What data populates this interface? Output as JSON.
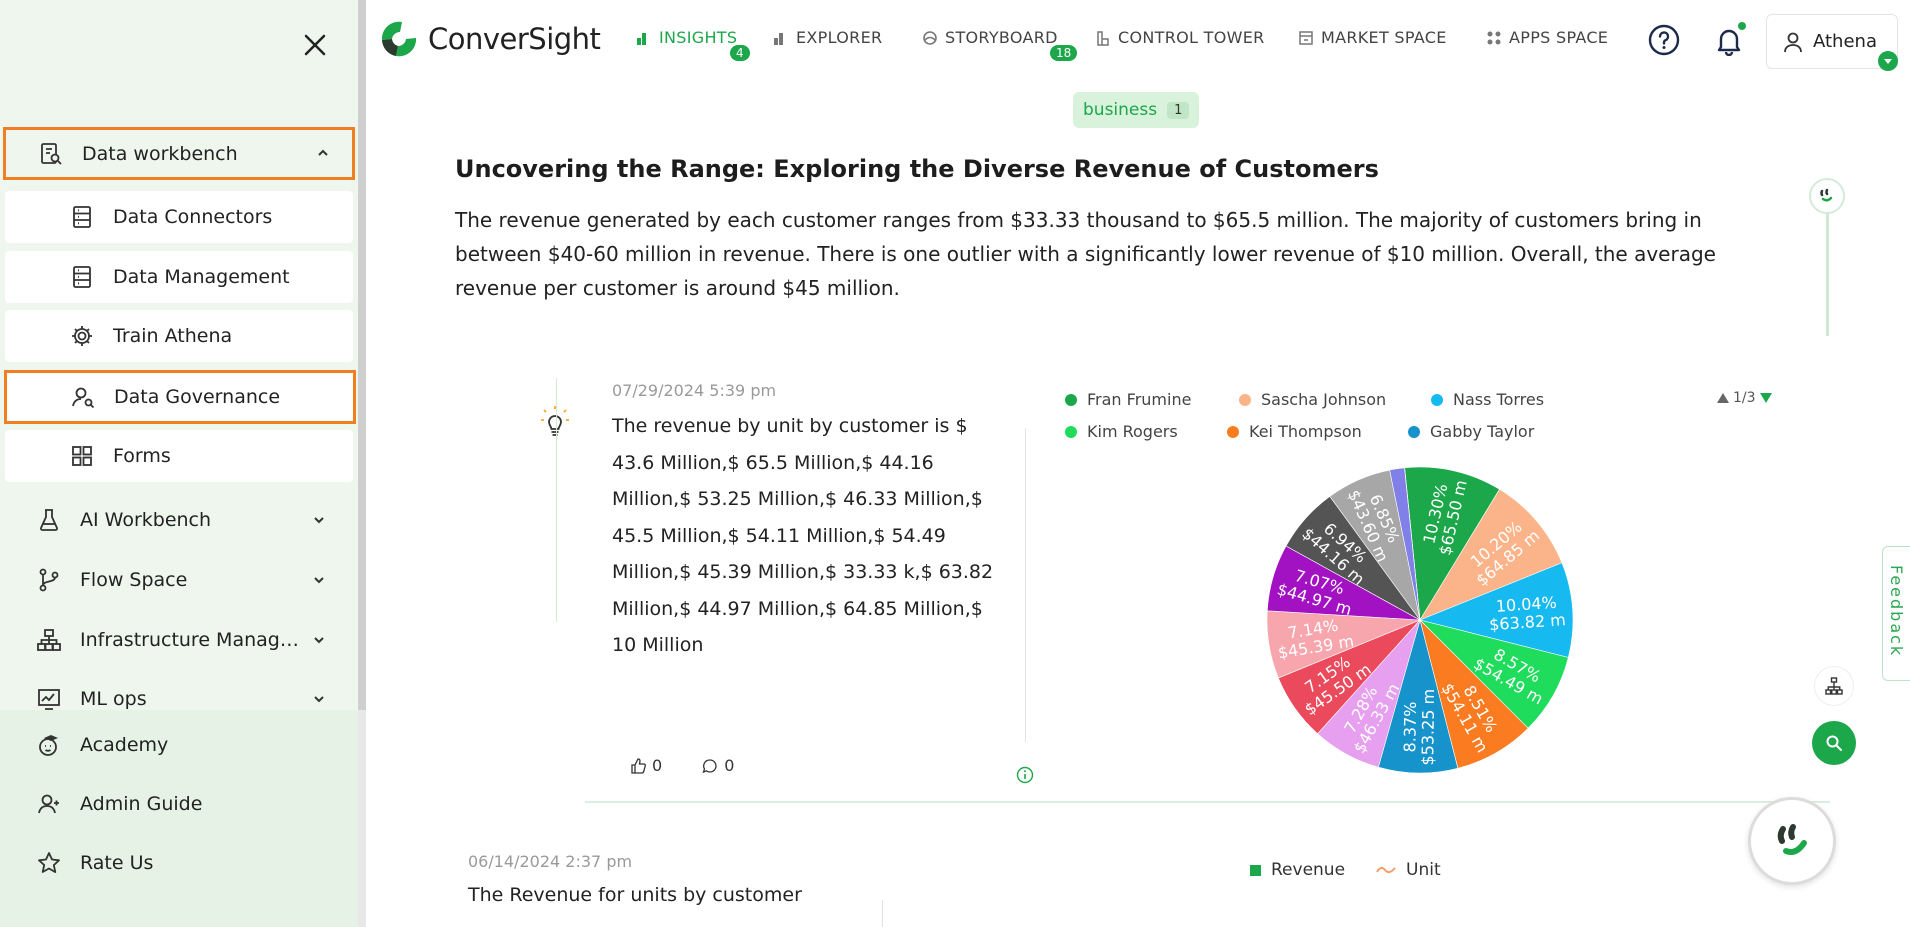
{
  "sidebar": {
    "group": {
      "label": "Data workbench",
      "icon": "report-search-icon",
      "expanded": true
    },
    "sub_items": [
      {
        "label": "Data Connectors",
        "icon": "database-icon"
      },
      {
        "label": "Data Management",
        "icon": "database-icon"
      },
      {
        "label": "Train Athena",
        "icon": "gear-icon"
      },
      {
        "label": "Data Governance",
        "icon": "user-shield-icon",
        "selected": true
      },
      {
        "label": "Forms",
        "icon": "grid-icon"
      }
    ],
    "items": [
      {
        "label": "AI Workbench",
        "icon": "flask-icon"
      },
      {
        "label": "Flow Space",
        "icon": "flow-icon"
      },
      {
        "label": "Infrastructure Management",
        "icon": "sitemap-icon"
      },
      {
        "label": "ML ops",
        "icon": "chart-monitor-icon"
      }
    ],
    "bottom_items": [
      {
        "label": "Academy",
        "icon": "academy-icon"
      },
      {
        "label": "Admin Guide",
        "icon": "admin-guide-icon"
      },
      {
        "label": "Rate Us",
        "icon": "star-icon"
      }
    ]
  },
  "brand": {
    "name": "ConverSight",
    "color": "#1ca74a"
  },
  "topnav": [
    {
      "label": "INSIGHTS",
      "badge": "4",
      "active": true
    },
    {
      "label": "EXPLORER"
    },
    {
      "label": "STORYBOARD",
      "badge": "18"
    },
    {
      "label": "CONTROL TOWER"
    },
    {
      "label": "MARKET SPACE"
    },
    {
      "label": "APPS SPACE"
    }
  ],
  "user": {
    "name": "Athena"
  },
  "tag": {
    "label": "business",
    "count": "1"
  },
  "insight": {
    "title": "Uncovering the Range: Exploring the Diverse Revenue of Customers",
    "summary": "The revenue generated by each customer ranges from $33.33 thousand to $65.5 million. The majority of customers bring in between $40-60 million in revenue. There is one outlier with a significantly lower revenue of $10 million. Overall, the average revenue per customer is around $45 million."
  },
  "card": {
    "date": "07/29/2024 5:39 pm",
    "text": "The revenue by unit by customer is $ 43.6 Million,$ 65.5 Million,$ 44.16 Million,$ 53.25 Million,$ 46.33 Million,$ 45.5 Million,$ 54.11 Million,$ 54.49 Million,$ 45.39 Million,$ 33.33 k,$ 63.82 Million,$ 44.97 Million,$ 64.85 Million,$ 10 Million",
    "likes": "0",
    "comments": "0",
    "pager": "1/3"
  },
  "chart_data": {
    "type": "pie",
    "legend": [
      "Fran Frumine",
      "Sascha Johnson",
      "Nass Torres",
      "Kim Rogers",
      "Kei Thompson",
      "Gabby Taylor"
    ],
    "slices": [
      {
        "name": "Fran Frumine",
        "pct": "10.30%",
        "value": "$65.50 m",
        "share": 10.3,
        "color": "#1ca74a"
      },
      {
        "name": "Sascha Johnson",
        "pct": "10.20%",
        "value": "$64.85 m",
        "share": 10.2,
        "color": "#fbb48a"
      },
      {
        "name": "Nass Torres",
        "pct": "10.04%",
        "value": "$63.82 m",
        "share": 10.04,
        "color": "#16b9f0"
      },
      {
        "name": "Kim Rogers",
        "pct": "8.57%",
        "value": "$54.49 m",
        "share": 8.57,
        "color": "#1fdc5c"
      },
      {
        "name": "Kei Thompson",
        "pct": "8.51%",
        "value": "$54.11 m",
        "share": 8.51,
        "color": "#fb7b21"
      },
      {
        "name": "Gabby Taylor",
        "pct": "8.37%",
        "value": "$53.25 m",
        "share": 8.37,
        "color": "#1793cc"
      },
      {
        "name": "",
        "pct": "7.28%",
        "value": "$46.33 m",
        "share": 7.28,
        "color": "#e79ff0"
      },
      {
        "name": "",
        "pct": "7.15%",
        "value": "$45.50 m",
        "share": 7.15,
        "color": "#ea4a5c"
      },
      {
        "name": "",
        "pct": "7.14%",
        "value": "$45.39 m",
        "share": 7.14,
        "color": "#f7a6ad"
      },
      {
        "name": "",
        "pct": "7.07%",
        "value": "$44.97 m",
        "share": 7.07,
        "color": "#a212c2"
      },
      {
        "name": "",
        "pct": "6.94%",
        "value": "$44.16 m",
        "share": 6.94,
        "color": "#545454"
      },
      {
        "name": "",
        "pct": "6.85%",
        "value": "$43.60 m",
        "share": 6.85,
        "color": "#a7a7a7"
      },
      {
        "name": "",
        "pct": "",
        "value": "",
        "share": 1.57,
        "color": "#8080e8"
      },
      {
        "name": "",
        "pct": "",
        "value": "",
        "share": 0.01,
        "color": "#d0d0ff"
      }
    ]
  },
  "card2": {
    "date": "06/14/2024 2:37 pm",
    "text": "The Revenue for units by customer",
    "legend": [
      {
        "label": "Revenue",
        "color": "#1ca74a"
      },
      {
        "label": "Unit",
        "color": "#f5a06a"
      }
    ]
  },
  "feedback": {
    "label": "Feedback"
  }
}
